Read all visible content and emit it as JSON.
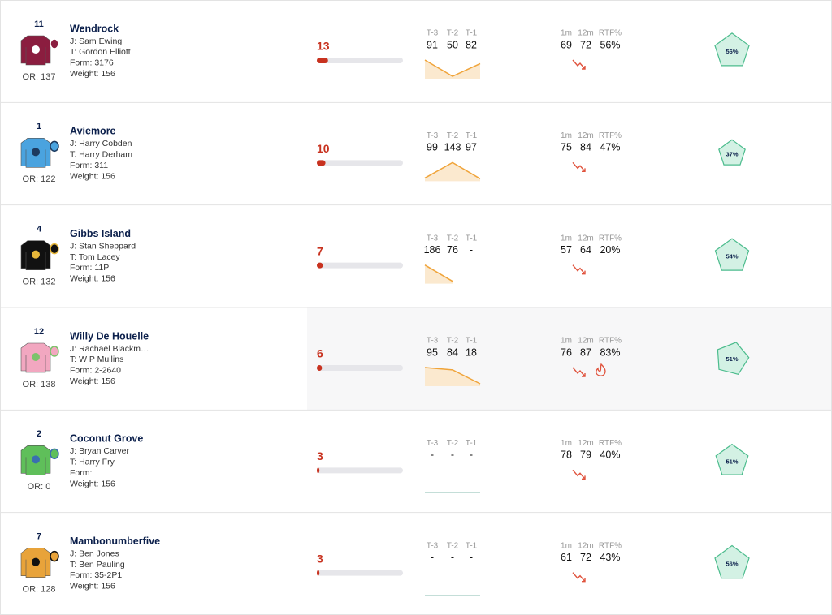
{
  "columns": {
    "form": [
      "T-3",
      "T-2",
      "T-1"
    ],
    "stats": [
      "1m",
      "12m",
      "RTF%"
    ]
  },
  "runners": [
    {
      "number": "11",
      "name": "Wendrock",
      "jockey": "J: Sam Ewing",
      "trainer": "T: Gordon Elliott",
      "form": "Form: 3176",
      "weight": "Weight: 156",
      "or": "OR: 137",
      "rating": 13,
      "form_values": [
        "91",
        "50",
        "82"
      ],
      "stats": [
        "69",
        "72",
        "56%"
      ],
      "score": {
        "value": 56,
        "label": "56%"
      }
    },
    {
      "number": "1",
      "name": "Aviemore",
      "jockey": "J: Harry Cobden",
      "trainer": "T: Harry Derham",
      "form": "Form: 311",
      "weight": "Weight: 156",
      "or": "OR: 122",
      "rating": 10,
      "form_values": [
        "99",
        "143",
        "97"
      ],
      "stats": [
        "75",
        "84",
        "47%"
      ],
      "score": {
        "value": 37,
        "label": "37%"
      }
    },
    {
      "number": "4",
      "name": "Gibbs Island",
      "jockey": "J: Stan Sheppard",
      "trainer": "T: Tom Lacey",
      "form": "Form: 11P",
      "weight": "Weight: 156",
      "or": "OR: 132",
      "rating": 7,
      "form_values": [
        "186",
        "76",
        "-"
      ],
      "stats": [
        "57",
        "64",
        "20%"
      ],
      "score": {
        "value": 54,
        "label": "54%"
      }
    },
    {
      "number": "12",
      "name": "Willy De Houelle",
      "jockey": "J: Rachael Blackm…",
      "trainer": "T: W P Mullins",
      "form": "Form: 2-2640",
      "weight": "Weight: 156",
      "or": "OR: 138",
      "rating": 6,
      "form_values": [
        "95",
        "84",
        "18"
      ],
      "stats": [
        "76",
        "87",
        "83%"
      ],
      "score": {
        "value": 51,
        "label": "51%"
      }
    },
    {
      "number": "2",
      "name": "Coconut Grove",
      "jockey": "J: Bryan Carver",
      "trainer": "T: Harry Fry",
      "form": "Form:",
      "weight": "Weight: 156",
      "or": "OR: 0",
      "rating": 3,
      "form_values": [
        "-",
        "-",
        "-"
      ],
      "stats": [
        "78",
        "79",
        "40%"
      ],
      "score": {
        "value": 51,
        "label": "51%"
      }
    },
    {
      "number": "7",
      "name": "Mambonumberfive",
      "jockey": "J: Ben Jones",
      "trainer": "T: Ben Pauling",
      "form": "Form: 35-2P1",
      "weight": "Weight: 156",
      "or": "OR: 128",
      "rating": 3,
      "form_values": [
        "-",
        "-",
        "-"
      ],
      "stats": [
        "61",
        "72",
        "43%"
      ],
      "score": {
        "value": 56,
        "label": "56%"
      }
    }
  ]
}
